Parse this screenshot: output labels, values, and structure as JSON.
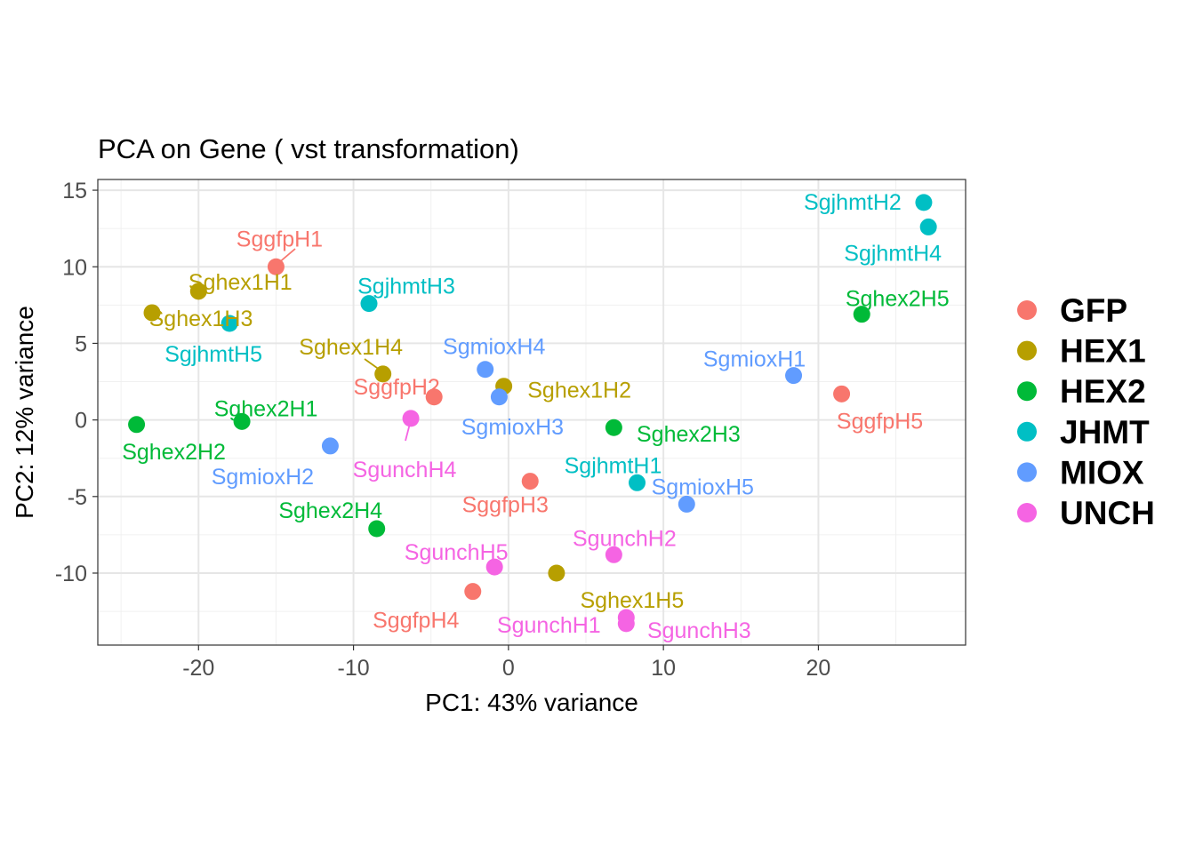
{
  "chart_data": {
    "type": "scatter",
    "title": "PCA on Gene ( vst transformation)",
    "xlabel": "PC1: 43% variance",
    "ylabel": "PC2: 12% variance",
    "xlim": [
      -26.5,
      29.5
    ],
    "ylim": [
      -14.7,
      15.7
    ],
    "x_ticks": [
      -20,
      -10,
      0,
      10,
      20
    ],
    "y_ticks": [
      15,
      10,
      5,
      0,
      -5,
      -10
    ],
    "x_tick_labels": [
      "-20",
      "-10",
      "0",
      "10",
      "20"
    ],
    "y_tick_labels": [
      "15",
      "10",
      "5",
      "0",
      "-5",
      "-10"
    ],
    "grid": true,
    "legend_position": "right",
    "groups": [
      {
        "name": "GFP",
        "color": "#F8766D"
      },
      {
        "name": "HEX1",
        "color": "#B79F00"
      },
      {
        "name": "HEX2",
        "color": "#00BA38"
      },
      {
        "name": "JHMT",
        "color": "#00BFC4"
      },
      {
        "name": "MIOX",
        "color": "#619CFF"
      },
      {
        "name": "UNCH",
        "color": "#F564E3"
      }
    ],
    "points": [
      {
        "label": "SggfpH1",
        "group": "GFP",
        "x": -15.0,
        "y": 10.0
      },
      {
        "label": "SggfpH2",
        "group": "GFP",
        "x": -4.8,
        "y": 1.5
      },
      {
        "label": "SggfpH3",
        "group": "GFP",
        "x": 1.4,
        "y": -4.0
      },
      {
        "label": "SggfpH4",
        "group": "GFP",
        "x": -2.3,
        "y": -11.2
      },
      {
        "label": "SggfpH5",
        "group": "GFP",
        "x": 21.5,
        "y": 1.7
      },
      {
        "label": "Sghex1H1",
        "group": "HEX1",
        "x": -20.0,
        "y": 8.4
      },
      {
        "label": "Sghex1H2",
        "group": "HEX1",
        "x": -0.3,
        "y": 2.2
      },
      {
        "label": "Sghex1H3",
        "group": "HEX1",
        "x": -23.0,
        "y": 7.0
      },
      {
        "label": "Sghex1H4",
        "group": "HEX1",
        "x": -8.1,
        "y": 3.0
      },
      {
        "label": "Sghex1H5",
        "group": "HEX1",
        "x": 3.1,
        "y": -10.0
      },
      {
        "label": "Sghex2H1",
        "group": "HEX2",
        "x": -17.2,
        "y": -0.1
      },
      {
        "label": "Sghex2H2",
        "group": "HEX2",
        "x": -24.0,
        "y": -0.3
      },
      {
        "label": "Sghex2H3",
        "group": "HEX2",
        "x": 6.8,
        "y": -0.5
      },
      {
        "label": "Sghex2H4",
        "group": "HEX2",
        "x": -8.5,
        "y": -7.1
      },
      {
        "label": "Sghex2H5",
        "group": "HEX2",
        "x": 22.8,
        "y": 6.9
      },
      {
        "label": "SgjhmtH1",
        "group": "JHMT",
        "x": 8.3,
        "y": -4.1
      },
      {
        "label": "SgjhmtH2",
        "group": "JHMT",
        "x": 26.8,
        "y": 14.2
      },
      {
        "label": "SgjhmtH3",
        "group": "JHMT",
        "x": -9.0,
        "y": 7.6
      },
      {
        "label": "SgjhmtH4",
        "group": "JHMT",
        "x": 27.1,
        "y": 12.6
      },
      {
        "label": "SgjhmtH5",
        "group": "JHMT",
        "x": -18.0,
        "y": 6.3
      },
      {
        "label": "SgmioxH1",
        "group": "MIOX",
        "x": 18.4,
        "y": 2.9
      },
      {
        "label": "SgmioxH2",
        "group": "MIOX",
        "x": -11.5,
        "y": -1.7
      },
      {
        "label": "SgmioxH3",
        "group": "MIOX",
        "x": -0.6,
        "y": 1.5
      },
      {
        "label": "SgmioxH4",
        "group": "MIOX",
        "x": -1.5,
        "y": 3.3
      },
      {
        "label": "SgmioxH5",
        "group": "MIOX",
        "x": 11.5,
        "y": -5.5
      },
      {
        "label": "SgunchH1",
        "group": "UNCH",
        "x": 7.6,
        "y": -12.9
      },
      {
        "label": "SgunchH2",
        "group": "UNCH",
        "x": 6.8,
        "y": -8.8
      },
      {
        "label": "SgunchH3",
        "group": "UNCH",
        "x": 7.6,
        "y": -13.3
      },
      {
        "label": "SgunchH4",
        "group": "UNCH",
        "x": -6.3,
        "y": 0.1
      },
      {
        "label": "SgunchH5",
        "group": "UNCH",
        "x": -0.9,
        "y": -9.6
      }
    ]
  }
}
